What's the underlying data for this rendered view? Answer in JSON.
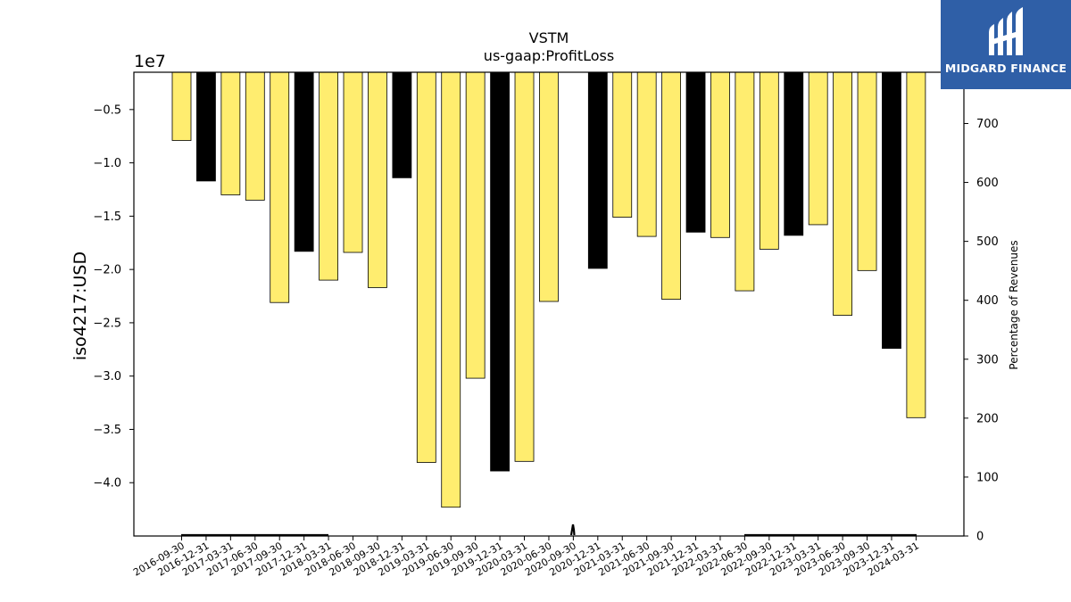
{
  "chart_data": {
    "type": "bar",
    "title": "VSTM",
    "subtitle": "us-gaap:ProfitLoss",
    "ylabel": "iso4217:USD",
    "y_offset_label": "1e7",
    "y2label": "Percentage of Revenues",
    "categories": [
      "2016-09-30",
      "2016-12-31",
      "2017-03-31",
      "2017-06-30",
      "2017-09-30",
      "2017-12-31",
      "2018-03-31",
      "2018-06-30",
      "2018-09-30",
      "2018-12-31",
      "2019-03-31",
      "2019-06-30",
      "2019-09-30",
      "2019-12-31",
      "2020-03-31",
      "2020-06-30",
      "2020-09-30",
      "2020-12-31",
      "2021-03-31",
      "2021-06-30",
      "2021-09-30",
      "2021-12-31",
      "2022-03-31",
      "2022-06-30",
      "2022-09-30",
      "2022-12-31",
      "2023-03-31",
      "2023-06-30",
      "2023-09-30",
      "2023-12-31",
      "2024-03-31"
    ],
    "values": [
      -7.9,
      -11.7,
      -13.0,
      -13.5,
      -23.1,
      -18.3,
      -21.0,
      -18.4,
      -21.7,
      -11.4,
      -38.1,
      -42.3,
      -30.2,
      -38.9,
      -38.0,
      -23.0,
      null,
      -19.9,
      -15.1,
      -16.9,
      -22.8,
      -16.5,
      -17.0,
      -22.0,
      -18.1,
      -16.8,
      -15.8,
      -24.3,
      -20.1,
      -27.4,
      -33.9
    ],
    "value_scale": 1000000,
    "bar_colors": [
      "#ffed6f",
      "#000000",
      "#ffed6f",
      "#ffed6f",
      "#ffed6f",
      "#000000",
      "#ffed6f",
      "#ffed6f",
      "#ffed6f",
      "#000000",
      "#ffed6f",
      "#ffed6f",
      "#ffed6f",
      "#000000",
      "#ffed6f",
      "#ffed6f",
      "#ffed6f",
      "#000000",
      "#ffed6f",
      "#ffed6f",
      "#ffed6f",
      "#000000",
      "#ffed6f",
      "#ffed6f",
      "#ffed6f",
      "#000000",
      "#ffed6f",
      "#ffed6f",
      "#ffed6f",
      "#000000",
      "#ffed6f"
    ],
    "yticks": [
      "−0.5",
      "−1.0",
      "−1.5",
      "−2.0",
      "−2.5",
      "−3.0",
      "−3.5",
      "−4.0"
    ],
    "ytick_values": [
      -0.5,
      -1.0,
      -1.5,
      -2.0,
      -2.5,
      -3.0,
      -3.5,
      -4.0
    ],
    "ylim": [
      -4.5,
      -0.15
    ],
    "y2ticks": [
      "0",
      "100",
      "200",
      "300",
      "400",
      "500",
      "600",
      "700"
    ],
    "y2tick_values": [
      0,
      100,
      200,
      300,
      400,
      500,
      600,
      700
    ],
    "y2lim": [
      0,
      787
    ],
    "grid": false,
    "legend": "none"
  },
  "logo": {
    "text": "MIDGARD FINANCE",
    "background": "#2f5fa7"
  }
}
